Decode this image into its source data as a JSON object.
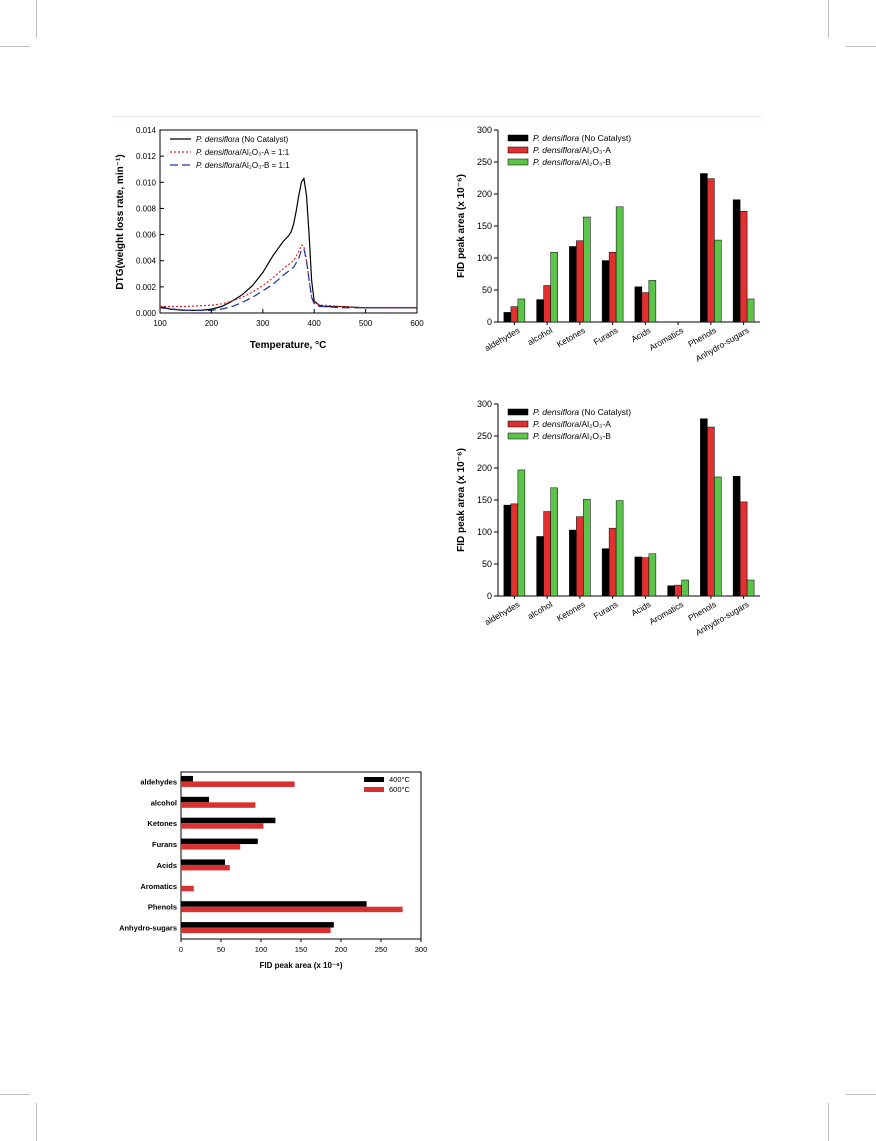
{
  "chart_data": [
    {
      "type": "line",
      "ylabel": "DTG(weight loss rate, min⁻¹)",
      "xlabel": "Temperature, °C",
      "xlim": [
        100,
        600
      ],
      "ylim": [
        0,
        0.014
      ],
      "xticks": [
        "100",
        "200",
        "300",
        "400",
        "500",
        "600"
      ],
      "yticks": [
        "0.000",
        "0.002",
        "0.004",
        "0.006",
        "0.008",
        "0.010",
        "0.012",
        "0.014"
      ],
      "legend_position": "top-left",
      "series": [
        {
          "name_italic": "P. densiflora",
          "name_rest": " (No Catalyst)",
          "color": "#000000",
          "dash": "none",
          "x": [
            100,
            120,
            150,
            180,
            200,
            220,
            240,
            260,
            280,
            300,
            320,
            340,
            350,
            355,
            360,
            365,
            370,
            375,
            380,
            385,
            390,
            395,
            400,
            410,
            420,
            450,
            500,
            550,
            600
          ],
          "y": [
            0.0005,
            0.0003,
            0.0002,
            0.0002,
            0.0003,
            0.0005,
            0.0009,
            0.0014,
            0.0021,
            0.0031,
            0.0044,
            0.0055,
            0.0059,
            0.0062,
            0.0068,
            0.0078,
            0.009,
            0.01,
            0.0103,
            0.009,
            0.006,
            0.0025,
            0.0009,
            0.0006,
            0.0005,
            0.0005,
            0.0004,
            0.0004,
            0.0004
          ]
        },
        {
          "name_italic": "P. densiflora",
          "name_rest": "/Al₂O₃-A = 1:1",
          "color": "#e02020",
          "dash": "2,2",
          "x": [
            100,
            150,
            200,
            220,
            240,
            260,
            280,
            300,
            320,
            340,
            360,
            370,
            375,
            380,
            385,
            390,
            395,
            400,
            410,
            420,
            450,
            500,
            550,
            600
          ],
          "y": [
            0.0005,
            0.0005,
            0.0006,
            0.0007,
            0.0009,
            0.0012,
            0.0016,
            0.0021,
            0.0027,
            0.0034,
            0.004,
            0.0047,
            0.0052,
            0.0051,
            0.004,
            0.0025,
            0.0012,
            0.0008,
            0.0006,
            0.0006,
            0.0005,
            0.0004,
            0.0004,
            0.0004
          ]
        },
        {
          "name_italic": "P. densiflora",
          "name_rest": "/Al₂O₃-B = 1:1",
          "color": "#2030a0",
          "dash": "8,4",
          "x": [
            100,
            150,
            200,
            220,
            240,
            260,
            280,
            300,
            320,
            340,
            360,
            370,
            375,
            380,
            385,
            390,
            395,
            400,
            410,
            420,
            450,
            500,
            550,
            600
          ],
          "y": [
            0.0004,
            0.0002,
            0.0002,
            0.0003,
            0.0005,
            0.0008,
            0.0012,
            0.0017,
            0.0022,
            0.0029,
            0.0035,
            0.0042,
            0.0048,
            0.0049,
            0.004,
            0.0025,
            0.0012,
            0.0007,
            0.0005,
            0.0005,
            0.0004,
            0.0004,
            0.0004,
            0.0004
          ]
        }
      ]
    },
    {
      "type": "bar",
      "ylabel": "FID peak area (x 10⁻⁶)",
      "ylim": [
        0,
        300
      ],
      "yticks": [
        "0",
        "50",
        "100",
        "150",
        "200",
        "250",
        "300"
      ],
      "categories": [
        "aldehydes",
        "alcohol",
        "Ketones",
        "Furans",
        "Acids",
        "Aromatics",
        "Phenols",
        "Anhydro-sugars"
      ],
      "legend_position": "top-left",
      "series": [
        {
          "name_italic": "P. densiflora",
          "name_rest": " (No Catalyst)",
          "color": "#000000",
          "values": [
            15,
            35,
            118,
            96,
            55,
            0,
            232,
            191
          ]
        },
        {
          "name_italic": "P. densiflora",
          "name_rest": "/Al₂O₃-A",
          "color": "#e03030",
          "values": [
            24,
            57,
            127,
            109,
            46,
            0,
            224,
            173
          ]
        },
        {
          "name_italic": "P. densiflora",
          "name_rest": "/Al₂O₃-B",
          "color": "#5cc44a",
          "values": [
            36,
            109,
            164,
            180,
            65,
            0,
            128,
            36
          ]
        }
      ]
    },
    {
      "type": "bar",
      "ylabel": "FID peak area (x 10⁻⁶)",
      "ylim": [
        0,
        300
      ],
      "yticks": [
        "0",
        "50",
        "100",
        "150",
        "200",
        "250",
        "300"
      ],
      "categories": [
        "aldehydes",
        "alcohol",
        "Ketones",
        "Furans",
        "Acids",
        "Aromatics",
        "Phenols",
        "Anhydro-sugars"
      ],
      "legend_position": "top-left",
      "series": [
        {
          "name_italic": "P. densiflora",
          "name_rest": " (No Catalyst)",
          "color": "#000000",
          "values": [
            142,
            93,
            103,
            74,
            61,
            16,
            277,
            187
          ]
        },
        {
          "name_italic": "P. densiflora",
          "name_rest": "/Al₂O₃-A",
          "color": "#e03030",
          "values": [
            144,
            132,
            124,
            106,
            60,
            17,
            264,
            147
          ]
        },
        {
          "name_italic": "P. densiflora",
          "name_rest": "/Al₂O₃-B",
          "color": "#5cc44a",
          "values": [
            197,
            169,
            151,
            149,
            66,
            25,
            186,
            25
          ]
        }
      ]
    },
    {
      "type": "bar",
      "orientation": "horizontal",
      "xlabel": "FID peak area (x 10⁻⁶)",
      "xlim": [
        0,
        300
      ],
      "xticks": [
        "0",
        "50",
        "100",
        "150",
        "200",
        "250",
        "300"
      ],
      "categories": [
        "aldehydes",
        "alcohol",
        "Ketones",
        "Furans",
        "Acids",
        "Aromatics",
        "Phenols",
        "Anhydro-sugars"
      ],
      "legend_position": "top-right",
      "series": [
        {
          "name": "400°C",
          "color": "#000000",
          "values": [
            15,
            35,
            118,
            96,
            55,
            0,
            232,
            191
          ]
        },
        {
          "name": "600°C",
          "color": "#d93030",
          "values": [
            142,
            93,
            103,
            74,
            61,
            16,
            277,
            187
          ]
        }
      ]
    }
  ]
}
